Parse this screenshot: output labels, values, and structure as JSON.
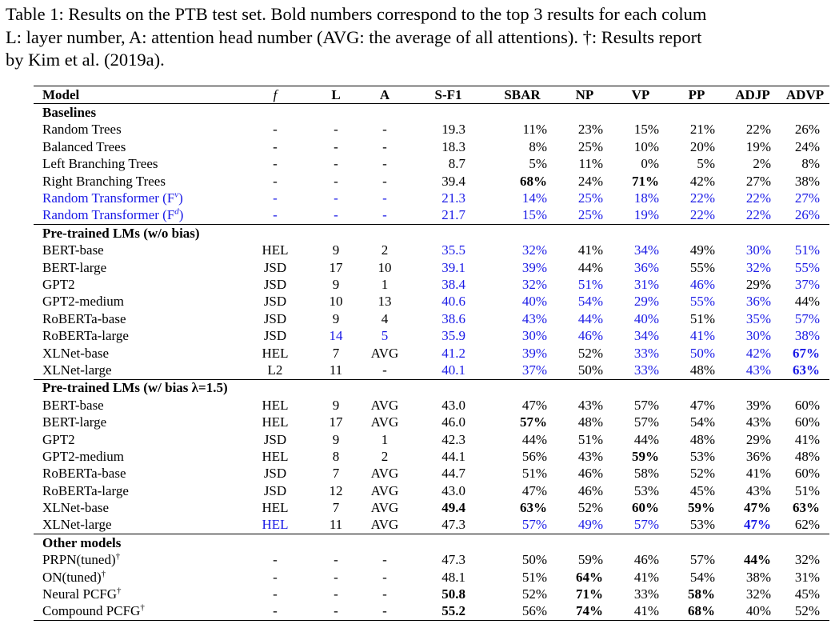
{
  "caption": {
    "line1": "Table 1: Results on the PTB test set. Bold numbers correspond to the top 3 results for each colum",
    "line2": "L: layer number, A: attention head number (AVG: the average of all attentions). †: Results report",
    "line3": "by Kim et al. (2019a)."
  },
  "headers": [
    "Model",
    "f",
    "L",
    "A",
    "S-F1",
    "SBAR",
    "NP",
    "VP",
    "PP",
    "ADJP",
    "ADVP"
  ],
  "colors": {
    "highlight": "#1a1ae6",
    "text": "#000000"
  },
  "sections": [
    {
      "title": "Baselines",
      "rows": [
        {
          "model": "Random Trees",
          "f": "-",
          "L": "-",
          "A": "-",
          "sf1": "19.3",
          "sbar": "11%",
          "np": "23%",
          "vp": "15%",
          "pp": "21%",
          "adjp": "22%",
          "advp": "26%"
        },
        {
          "model": "Balanced Trees",
          "f": "-",
          "L": "-",
          "A": "-",
          "sf1": "18.3",
          "sbar": "8%",
          "np": "25%",
          "vp": "10%",
          "pp": "20%",
          "adjp": "19%",
          "advp": "24%"
        },
        {
          "model": "Left Branching Trees",
          "f": "-",
          "L": "-",
          "A": "-",
          "sf1": "8.7",
          "sbar": "5%",
          "np": "11%",
          "vp": "0%",
          "pp": "5%",
          "adjp": "2%",
          "advp": "8%"
        },
        {
          "model": "Right Branching Trees",
          "f": "-",
          "L": "-",
          "A": "-",
          "sf1": "39.4",
          "sbar": "68%",
          "np": "24%",
          "vp": "71%",
          "pp": "42%",
          "adjp": "27%",
          "advp": "38%"
        },
        {
          "model": "Random Transformer (F",
          "sup": "v",
          "model_end": ")",
          "f": "-",
          "L": "-",
          "A": "-",
          "sf1": "21.3",
          "sbar": "14%",
          "np": "25%",
          "vp": "18%",
          "pp": "22%",
          "adjp": "22%",
          "advp": "27%"
        },
        {
          "model": "Random Transformer (F",
          "sup": "d",
          "model_end": ")",
          "f": "-",
          "L": "-",
          "A": "-",
          "sf1": "21.7",
          "sbar": "15%",
          "np": "25%",
          "vp": "19%",
          "pp": "22%",
          "adjp": "22%",
          "advp": "26%"
        }
      ]
    },
    {
      "title": "Pre-trained LMs (w/o bias)",
      "rows": [
        {
          "model": "BERT-base",
          "f": "HEL",
          "L": "9",
          "A": "2",
          "sf1": "35.5",
          "sbar": "32%",
          "np": "41%",
          "vp": "34%",
          "pp": "49%",
          "adjp": "30%",
          "advp": "51%"
        },
        {
          "model": "BERT-large",
          "f": "JSD",
          "L": "17",
          "A": "10",
          "sf1": "39.1",
          "sbar": "39%",
          "np": "44%",
          "vp": "36%",
          "pp": "55%",
          "adjp": "32%",
          "advp": "55%"
        },
        {
          "model": "GPT2",
          "f": "JSD",
          "L": "9",
          "A": "1",
          "sf1": "38.4",
          "sbar": "32%",
          "np": "51%",
          "vp": "31%",
          "pp": "46%",
          "adjp": "29%",
          "advp": "37%"
        },
        {
          "model": "GPT2-medium",
          "f": "JSD",
          "L": "10",
          "A": "13",
          "sf1": "40.6",
          "sbar": "40%",
          "np": "54%",
          "vp": "29%",
          "pp": "55%",
          "adjp": "36%",
          "advp": "44%"
        },
        {
          "model": "RoBERTa-base",
          "f": "JSD",
          "L": "9",
          "A": "4",
          "sf1": "38.6",
          "sbar": "43%",
          "np": "44%",
          "vp": "40%",
          "pp": "51%",
          "adjp": "35%",
          "advp": "57%"
        },
        {
          "model": "RoBERTa-large",
          "f": "JSD",
          "L": "14",
          "A": "5",
          "sf1": "35.9",
          "sbar": "30%",
          "np": "46%",
          "vp": "34%",
          "pp": "41%",
          "adjp": "30%",
          "advp": "38%"
        },
        {
          "model": "XLNet-base",
          "f": "HEL",
          "L": "7",
          "A": "AVG",
          "sf1": "41.2",
          "sbar": "39%",
          "np": "52%",
          "vp": "33%",
          "pp": "50%",
          "adjp": "42%",
          "advp": "67%"
        },
        {
          "model": "XLNet-large",
          "f": "L2",
          "L": "11",
          "A": "-",
          "sf1": "40.1",
          "sbar": "37%",
          "np": "50%",
          "vp": "33%",
          "pp": "48%",
          "adjp": "43%",
          "advp": "63%"
        }
      ]
    },
    {
      "title": "Pre-trained LMs (w/ bias λ=1.5)",
      "rows": [
        {
          "model": "BERT-base",
          "f": "HEL",
          "L": "9",
          "A": "AVG",
          "sf1": "43.0",
          "sbar": "47%",
          "np": "43%",
          "vp": "57%",
          "pp": "47%",
          "adjp": "39%",
          "advp": "60%"
        },
        {
          "model": "BERT-large",
          "f": "HEL",
          "L": "17",
          "A": "AVG",
          "sf1": "46.0",
          "sbar": "57%",
          "np": "48%",
          "vp": "57%",
          "pp": "54%",
          "adjp": "43%",
          "advp": "60%"
        },
        {
          "model": "GPT2",
          "f": "JSD",
          "L": "9",
          "A": "1",
          "sf1": "42.3",
          "sbar": "44%",
          "np": "51%",
          "vp": "44%",
          "pp": "48%",
          "adjp": "29%",
          "advp": "41%"
        },
        {
          "model": "GPT2-medium",
          "f": "HEL",
          "L": "8",
          "A": "2",
          "sf1": "44.1",
          "sbar": "56%",
          "np": "43%",
          "vp": "59%",
          "pp": "53%",
          "adjp": "36%",
          "advp": "48%"
        },
        {
          "model": "RoBERTa-base",
          "f": "JSD",
          "L": "7",
          "A": "AVG",
          "sf1": "44.7",
          "sbar": "51%",
          "np": "46%",
          "vp": "58%",
          "pp": "52%",
          "adjp": "41%",
          "advp": "60%"
        },
        {
          "model": "RoBERTa-large",
          "f": "JSD",
          "L": "12",
          "A": "AVG",
          "sf1": "43.0",
          "sbar": "47%",
          "np": "46%",
          "vp": "53%",
          "pp": "45%",
          "adjp": "43%",
          "advp": "51%"
        },
        {
          "model": "XLNet-base",
          "f": "HEL",
          "L": "7",
          "A": "AVG",
          "sf1": "49.4",
          "sbar": "63%",
          "np": "52%",
          "vp": "60%",
          "pp": "59%",
          "adjp": "47%",
          "advp": "63%"
        },
        {
          "model": "XLNet-large",
          "f": "HEL",
          "L": "11",
          "A": "AVG",
          "sf1": "47.3",
          "sbar": "57%",
          "np": "49%",
          "vp": "57%",
          "pp": "53%",
          "adjp": "47%",
          "advp": "62%"
        }
      ]
    },
    {
      "title": "Other models",
      "rows": [
        {
          "model": "PRPN(tuned)",
          "sup": "†",
          "f": "-",
          "L": "-",
          "A": "-",
          "sf1": "47.3",
          "sbar": "50%",
          "np": "59%",
          "vp": "46%",
          "pp": "57%",
          "adjp": "44%",
          "advp": "32%"
        },
        {
          "model": "ON(tuned)",
          "sup": "†",
          "f": "-",
          "L": "-",
          "A": "-",
          "sf1": "48.1",
          "sbar": "51%",
          "np": "64%",
          "vp": "41%",
          "pp": "54%",
          "adjp": "38%",
          "advp": "31%"
        },
        {
          "model": "Neural PCFG",
          "sup": "†",
          "f": "-",
          "L": "-",
          "A": "-",
          "sf1": "50.8",
          "sbar": "52%",
          "np": "71%",
          "vp": "33%",
          "pp": "58%",
          "adjp": "32%",
          "advp": "45%"
        },
        {
          "model": "Compound PCFG",
          "sup": "†",
          "f": "-",
          "L": "-",
          "A": "-",
          "sf1": "55.2",
          "sbar": "56%",
          "np": "74%",
          "vp": "41%",
          "pp": "68%",
          "adjp": "40%",
          "advp": "52%"
        }
      ]
    }
  ]
}
